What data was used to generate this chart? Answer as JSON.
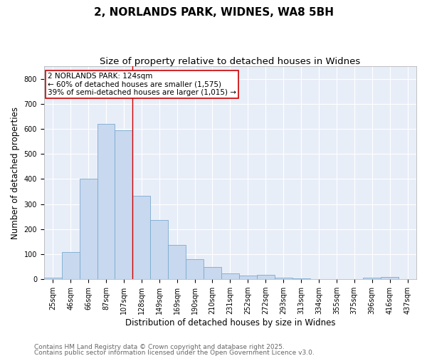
{
  "title1": "2, NORLANDS PARK, WIDNES, WA8 5BH",
  "title2": "Size of property relative to detached houses in Widnes",
  "xlabel": "Distribution of detached houses by size in Widnes",
  "ylabel": "Number of detached properties",
  "categories": [
    "25sqm",
    "46sqm",
    "66sqm",
    "87sqm",
    "107sqm",
    "128sqm",
    "149sqm",
    "169sqm",
    "190sqm",
    "210sqm",
    "231sqm",
    "252sqm",
    "272sqm",
    "293sqm",
    "313sqm",
    "334sqm",
    "355sqm",
    "375sqm",
    "396sqm",
    "416sqm",
    "437sqm"
  ],
  "bar_heights": [
    7,
    108,
    400,
    620,
    595,
    333,
    235,
    137,
    80,
    50,
    22,
    15,
    17,
    5,
    3,
    0,
    0,
    0,
    7,
    8,
    0
  ],
  "bar_color": "#c8d8ee",
  "bar_edge_color": "#7aabcf",
  "vline_x": 4.5,
  "vline_color": "#cc0000",
  "annotation_text": "2 NORLANDS PARK: 124sqm\n← 60% of detached houses are smaller (1,575)\n39% of semi-detached houses are larger (1,015) →",
  "annotation_box_color": "#cc0000",
  "ylim": [
    0,
    850
  ],
  "yticks": [
    0,
    100,
    200,
    300,
    400,
    500,
    600,
    700,
    800
  ],
  "footer1": "Contains HM Land Registry data © Crown copyright and database right 2025.",
  "footer2": "Contains public sector information licensed under the Open Government Licence v3.0.",
  "background_color": "#e8eef8",
  "title_fontsize": 11,
  "subtitle_fontsize": 9.5,
  "axis_label_fontsize": 8.5,
  "tick_fontsize": 7,
  "annotation_fontsize": 7.5,
  "footer_fontsize": 6.5
}
